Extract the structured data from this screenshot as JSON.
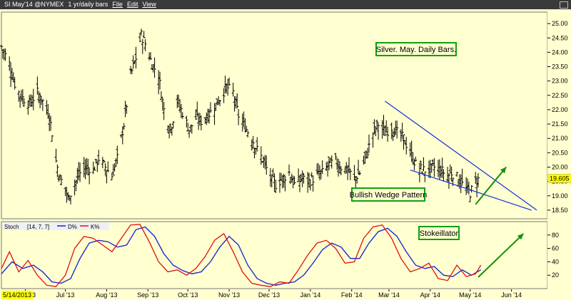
{
  "toolbar": {
    "symbol": "SI May'14 @NYMEX",
    "interval": "1 yr/daily bars",
    "menu_file": "File",
    "menu_edit": "Edit",
    "menu_view": "View"
  },
  "colors": {
    "background": "#ffffd0",
    "bars": "#000000",
    "wedge_lines": "#1030e0",
    "arrow": "#109010",
    "annotation_border": "#10a010",
    "d_line": "#1020d0",
    "k_line": "#e01010",
    "price_marker": "#ffff00"
  },
  "indicator": {
    "name": "Stoch",
    "params": "[14, 7, 7]",
    "d_label": "D%",
    "k_label": "K%"
  },
  "annotations": {
    "title_box": "Silver. May. Daily Bars.",
    "wedge_box": "Bullish Wedge Pattern",
    "stoch_box": "Stokeillator"
  },
  "date_start_label": "5/14/2013",
  "current_price": "19.605",
  "chart_data": [
    {
      "type": "ohlc",
      "ylim": [
        18.2,
        25.4
      ],
      "ytick_labels": [
        "18.50",
        "19.00",
        "19.50",
        "20.00",
        "20.50",
        "21.00",
        "21.50",
        "22.00",
        "22.50",
        "23.00",
        "23.50",
        "24.00",
        "24.50",
        "25.00"
      ],
      "ytick_values": [
        18.5,
        19.0,
        19.5,
        20.0,
        20.5,
        21.0,
        21.5,
        22.0,
        22.5,
        23.0,
        23.5,
        24.0,
        24.5,
        25.0
      ],
      "xtick_labels": [
        "Jun '13",
        "Jul '13",
        "Aug '13",
        "Sep '13",
        "Oct '13",
        "Nov '13",
        "Dec '13",
        "Jan '14",
        "Feb '14",
        "Mar '14",
        "Apr '14",
        "May '14",
        "Jun '14"
      ],
      "xtick_dates": [
        "2013-06-01",
        "2013-07-01",
        "2013-08-01",
        "2013-09-01",
        "2013-10-01",
        "2013-11-01",
        "2013-12-01",
        "2014-01-01",
        "2014-02-01",
        "2014-03-01",
        "2014-04-01",
        "2014-05-01",
        "2014-06-01"
      ],
      "xlim": [
        "2013-05-14",
        "2014-06-28"
      ],
      "close_path": [
        [
          "2013-05-14",
          24.2
        ],
        [
          "2013-05-20",
          23.6
        ],
        [
          "2013-05-24",
          22.9
        ],
        [
          "2013-05-28",
          22.5
        ],
        [
          "2013-06-04",
          22.2
        ],
        [
          "2013-06-10",
          22.6
        ],
        [
          "2013-06-14",
          22.3
        ],
        [
          "2013-06-19",
          21.8
        ],
        [
          "2013-06-21",
          21.2
        ],
        [
          "2013-06-24",
          20.2
        ],
        [
          "2013-06-27",
          19.6
        ],
        [
          "2013-07-01",
          19.3
        ],
        [
          "2013-07-03",
          18.9
        ],
        [
          "2013-07-08",
          19.4
        ],
        [
          "2013-07-12",
          19.8
        ],
        [
          "2013-07-17",
          20.0
        ],
        [
          "2013-07-22",
          19.9
        ],
        [
          "2013-07-26",
          20.3
        ],
        [
          "2013-07-31",
          20.0
        ],
        [
          "2013-08-05",
          19.7
        ],
        [
          "2013-08-09",
          20.3
        ],
        [
          "2013-08-14",
          21.5
        ],
        [
          "2013-08-19",
          23.2
        ],
        [
          "2013-08-23",
          23.8
        ],
        [
          "2013-08-27",
          24.6
        ],
        [
          "2013-08-30",
          24.3
        ],
        [
          "2013-09-04",
          23.6
        ],
        [
          "2013-09-09",
          23.2
        ],
        [
          "2013-09-13",
          22.0
        ],
        [
          "2013-09-18",
          21.3
        ],
        [
          "2013-09-23",
          22.3
        ],
        [
          "2013-09-27",
          21.9
        ],
        [
          "2013-10-02",
          21.3
        ],
        [
          "2013-10-07",
          21.7
        ],
        [
          "2013-10-11",
          21.6
        ],
        [
          "2013-10-16",
          21.8
        ],
        [
          "2013-10-21",
          22.1
        ],
        [
          "2013-10-25",
          22.4
        ],
        [
          "2013-10-30",
          22.8
        ],
        [
          "2013-11-04",
          22.6
        ],
        [
          "2013-11-08",
          21.8
        ],
        [
          "2013-11-13",
          21.4
        ],
        [
          "2013-11-18",
          21.0
        ],
        [
          "2013-11-22",
          20.6
        ],
        [
          "2013-11-27",
          20.2
        ],
        [
          "2013-12-02",
          19.6
        ],
        [
          "2013-12-06",
          19.4
        ],
        [
          "2013-12-11",
          19.6
        ],
        [
          "2013-12-16",
          19.8
        ],
        [
          "2013-12-20",
          19.4
        ],
        [
          "2013-12-26",
          19.6
        ],
        [
          "2013-12-31",
          19.5
        ],
        [
          "2014-01-06",
          19.7
        ],
        [
          "2014-01-10",
          19.8
        ],
        [
          "2014-01-15",
          20.1
        ],
        [
          "2014-01-20",
          20.2
        ],
        [
          "2014-01-24",
          20.0
        ],
        [
          "2014-01-29",
          19.9
        ],
        [
          "2014-02-03",
          19.6
        ],
        [
          "2014-02-07",
          19.8
        ],
        [
          "2014-02-12",
          20.4
        ],
        [
          "2014-02-17",
          21.2
        ],
        [
          "2014-02-21",
          21.5
        ],
        [
          "2014-02-26",
          21.2
        ],
        [
          "2014-03-03",
          21.4
        ],
        [
          "2014-03-07",
          21.2
        ],
        [
          "2014-03-12",
          21.0
        ],
        [
          "2014-03-17",
          20.5
        ],
        [
          "2014-03-21",
          20.1
        ],
        [
          "2014-03-26",
          19.9
        ],
        [
          "2014-03-31",
          19.9
        ],
        [
          "2014-04-04",
          20.0
        ],
        [
          "2014-04-09",
          19.9
        ],
        [
          "2014-04-14",
          19.7
        ],
        [
          "2014-04-17",
          19.8
        ],
        [
          "2014-04-22",
          19.6
        ],
        [
          "2014-04-25",
          19.4
        ],
        [
          "2014-04-29",
          19.2
        ],
        [
          "2014-05-01",
          19.1
        ],
        [
          "2014-05-05",
          19.5
        ],
        [
          "2014-05-08",
          19.6
        ]
      ],
      "wedge_upper": [
        [
          "2014-02-26",
          22.3
        ],
        [
          "2014-06-20",
          18.5
        ]
      ],
      "wedge_lower": [
        [
          "2014-03-17",
          19.9
        ],
        [
          "2014-06-16",
          18.5
        ]
      ],
      "arrow": [
        [
          "2014-05-05",
          18.7
        ],
        [
          "2014-05-28",
          20.0
        ]
      ]
    },
    {
      "type": "line",
      "name": "Stoch",
      "ylim": [
        0,
        100
      ],
      "ytick_labels": [
        "20",
        "40",
        "60",
        "80"
      ],
      "ytick_values": [
        20,
        40,
        60,
        80
      ],
      "series": [
        {
          "name": "D%",
          "points": [
            [
              "2013-05-14",
              22
            ],
            [
              "2013-05-22",
              40
            ],
            [
              "2013-05-30",
              30
            ],
            [
              "2013-06-07",
              35
            ],
            [
              "2013-06-14",
              25
            ],
            [
              "2013-06-21",
              10
            ],
            [
              "2013-06-28",
              8
            ],
            [
              "2013-07-05",
              15
            ],
            [
              "2013-07-12",
              45
            ],
            [
              "2013-07-19",
              68
            ],
            [
              "2013-07-26",
              72
            ],
            [
              "2013-08-02",
              70
            ],
            [
              "2013-08-09",
              62
            ],
            [
              "2013-08-16",
              65
            ],
            [
              "2013-08-23",
              88
            ],
            [
              "2013-08-30",
              92
            ],
            [
              "2013-09-06",
              78
            ],
            [
              "2013-09-13",
              52
            ],
            [
              "2013-09-20",
              35
            ],
            [
              "2013-09-27",
              27
            ],
            [
              "2013-10-04",
              22
            ],
            [
              "2013-10-11",
              25
            ],
            [
              "2013-10-18",
              40
            ],
            [
              "2013-10-25",
              62
            ],
            [
              "2013-11-01",
              78
            ],
            [
              "2013-11-08",
              65
            ],
            [
              "2013-11-15",
              35
            ],
            [
              "2013-11-22",
              15
            ],
            [
              "2013-11-29",
              8
            ],
            [
              "2013-12-06",
              5
            ],
            [
              "2013-12-13",
              8
            ],
            [
              "2013-12-20",
              10
            ],
            [
              "2013-12-27",
              20
            ],
            [
              "2014-01-03",
              38
            ],
            [
              "2014-01-10",
              58
            ],
            [
              "2014-01-17",
              68
            ],
            [
              "2014-01-24",
              62
            ],
            [
              "2014-01-31",
              45
            ],
            [
              "2014-02-07",
              45
            ],
            [
              "2014-02-14",
              68
            ],
            [
              "2014-02-21",
              85
            ],
            [
              "2014-02-28",
              90
            ],
            [
              "2014-03-07",
              78
            ],
            [
              "2014-03-14",
              55
            ],
            [
              "2014-03-21",
              35
            ],
            [
              "2014-03-28",
              30
            ],
            [
              "2014-04-04",
              33
            ],
            [
              "2014-04-11",
              20
            ],
            [
              "2014-04-18",
              18
            ],
            [
              "2014-04-25",
              28
            ],
            [
              "2014-05-02",
              20
            ],
            [
              "2014-05-09",
              28
            ]
          ]
        },
        {
          "name": "K%",
          "points": [
            [
              "2013-05-14",
              30
            ],
            [
              "2013-05-20",
              55
            ],
            [
              "2013-05-27",
              25
            ],
            [
              "2013-06-03",
              42
            ],
            [
              "2013-06-10",
              20
            ],
            [
              "2013-06-17",
              5
            ],
            [
              "2013-06-24",
              3
            ],
            [
              "2013-07-01",
              20
            ],
            [
              "2013-07-08",
              60
            ],
            [
              "2013-07-15",
              78
            ],
            [
              "2013-07-22",
              75
            ],
            [
              "2013-07-29",
              65
            ],
            [
              "2013-08-05",
              55
            ],
            [
              "2013-08-12",
              75
            ],
            [
              "2013-08-19",
              95
            ],
            [
              "2013-08-26",
              96
            ],
            [
              "2013-09-02",
              70
            ],
            [
              "2013-09-09",
              40
            ],
            [
              "2013-09-16",
              25
            ],
            [
              "2013-09-23",
              28
            ],
            [
              "2013-09-30",
              20
            ],
            [
              "2013-10-07",
              30
            ],
            [
              "2013-10-14",
              48
            ],
            [
              "2013-10-21",
              72
            ],
            [
              "2013-10-28",
              82
            ],
            [
              "2013-11-04",
              55
            ],
            [
              "2013-11-11",
              25
            ],
            [
              "2013-11-18",
              8
            ],
            [
              "2013-11-25",
              5
            ],
            [
              "2013-12-02",
              3
            ],
            [
              "2013-12-09",
              10
            ],
            [
              "2013-12-16",
              8
            ],
            [
              "2013-12-23",
              28
            ],
            [
              "2013-12-30",
              50
            ],
            [
              "2014-01-06",
              68
            ],
            [
              "2014-01-13",
              72
            ],
            [
              "2014-01-20",
              60
            ],
            [
              "2014-01-27",
              38
            ],
            [
              "2014-02-03",
              40
            ],
            [
              "2014-02-10",
              75
            ],
            [
              "2014-02-17",
              92
            ],
            [
              "2014-02-24",
              95
            ],
            [
              "2014-03-03",
              75
            ],
            [
              "2014-03-10",
              45
            ],
            [
              "2014-03-17",
              25
            ],
            [
              "2014-03-24",
              30
            ],
            [
              "2014-03-31",
              38
            ],
            [
              "2014-04-07",
              15
            ],
            [
              "2014-04-14",
              12
            ],
            [
              "2014-04-21",
              35
            ],
            [
              "2014-04-28",
              18
            ],
            [
              "2014-05-05",
              22
            ],
            [
              "2014-05-09",
              35
            ]
          ]
        }
      ],
      "arrow": [
        [
          "2014-05-07",
          17
        ],
        [
          "2014-06-10",
          82
        ]
      ]
    }
  ]
}
